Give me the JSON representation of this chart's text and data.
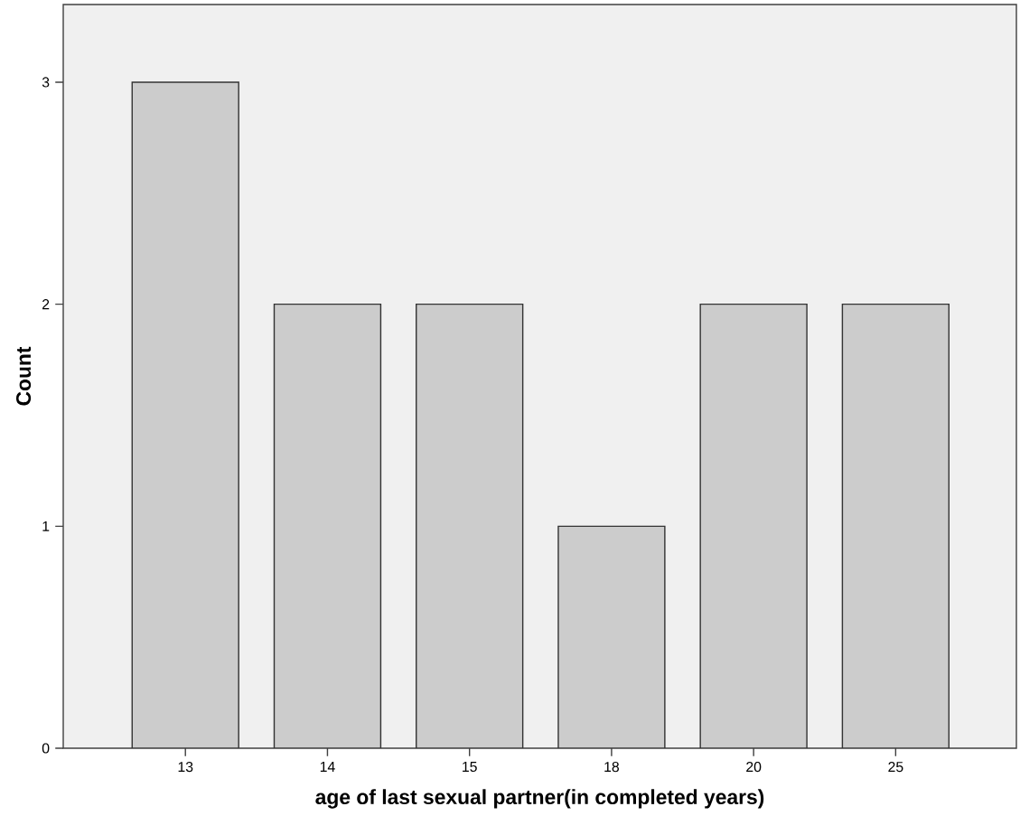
{
  "chart_data": {
    "type": "bar",
    "xlabel": "age of last sexual partner(in completed years)",
    "ylabel": "Count",
    "categories": [
      "13",
      "14",
      "15",
      "18",
      "20",
      "25"
    ],
    "values": [
      3,
      2,
      2,
      1,
      2,
      2
    ],
    "color": "#cccccc",
    "ylim": [
      0,
      3.35
    ],
    "yticks": [
      0,
      1,
      2,
      3
    ]
  }
}
